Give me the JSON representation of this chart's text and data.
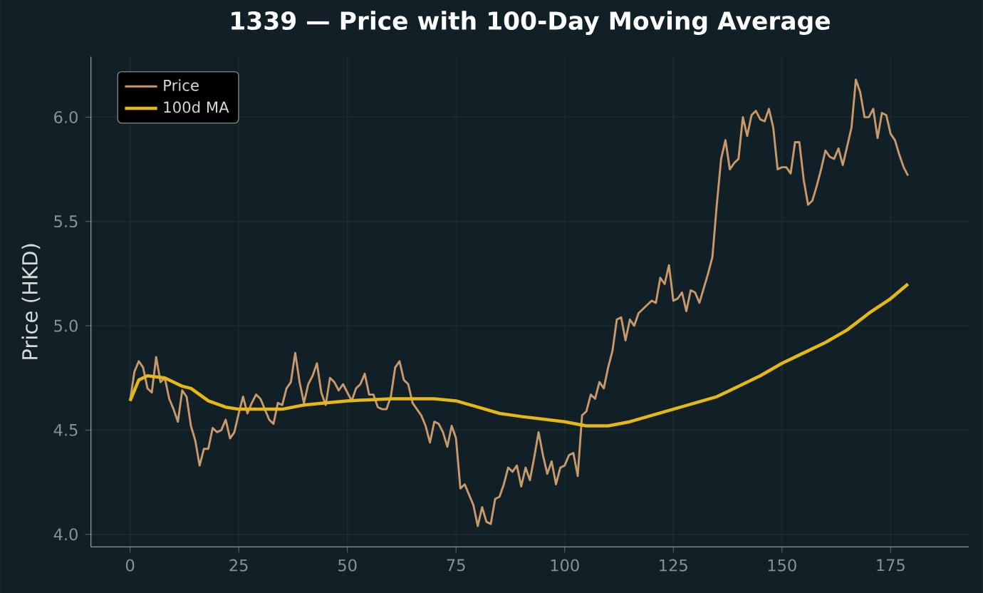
{
  "chart_data": {
    "type": "line",
    "title": "1339 — Price with 100-Day Moving Average",
    "ylabel": "Price (HKD)",
    "xlim": [
      -9,
      193
    ],
    "ylim": [
      3.94,
      6.29
    ],
    "xticks": [
      0,
      25,
      50,
      75,
      100,
      125,
      150,
      175
    ],
    "yticks": [
      {
        "value": 4.0,
        "label": "4.0"
      },
      {
        "value": 4.5,
        "label": "4.5"
      },
      {
        "value": 5.0,
        "label": "5.0"
      },
      {
        "value": 5.5,
        "label": "5.5"
      },
      {
        "value": 6.0,
        "label": "6.0"
      }
    ],
    "grid": true,
    "legend": "top left",
    "marker": "none",
    "line_style": "solid",
    "series": [
      {
        "name": "Price",
        "color": "#c8996a",
        "x": [
          0,
          1,
          2,
          3,
          4,
          5,
          6,
          7,
          8,
          9,
          10,
          11,
          12,
          13,
          14,
          15,
          16,
          17,
          18,
          19,
          20,
          21,
          22,
          23,
          24,
          25,
          26,
          27,
          28,
          29,
          30,
          31,
          32,
          33,
          34,
          35,
          36,
          37,
          38,
          39,
          40,
          41,
          42,
          43,
          44,
          45,
          46,
          47,
          48,
          49,
          50,
          51,
          52,
          53,
          54,
          55,
          56,
          57,
          58,
          59,
          60,
          61,
          62,
          63,
          64,
          65,
          66,
          67,
          68,
          69,
          70,
          71,
          72,
          73,
          74,
          75,
          76,
          77,
          78,
          79,
          80,
          81,
          82,
          83,
          84,
          85,
          86,
          87,
          88,
          89,
          90,
          91,
          92,
          93,
          94,
          95,
          96,
          97,
          98,
          99,
          100,
          101,
          102,
          103,
          104,
          105,
          106,
          107,
          108,
          109,
          110,
          111,
          112,
          113,
          114,
          115,
          116,
          117,
          118,
          119,
          120,
          121,
          122,
          123,
          124,
          125,
          126,
          127,
          128,
          129,
          130,
          131,
          132,
          133,
          134,
          135,
          136,
          137,
          138,
          139,
          140,
          141,
          142,
          143,
          144,
          145,
          146,
          147,
          148,
          149,
          150,
          151,
          152,
          153,
          154,
          155,
          156,
          157,
          158,
          159,
          160,
          161,
          162,
          163,
          164,
          165,
          166,
          167,
          168,
          169,
          170,
          171,
          172,
          173,
          174,
          175,
          176,
          177,
          178,
          179
        ],
        "values": [
          4.64,
          4.78,
          4.83,
          4.8,
          4.7,
          4.68,
          4.85,
          4.73,
          4.75,
          4.65,
          4.6,
          4.54,
          4.69,
          4.66,
          4.52,
          4.45,
          4.33,
          4.41,
          4.41,
          4.51,
          4.49,
          4.5,
          4.55,
          4.46,
          4.49,
          4.58,
          4.66,
          4.58,
          4.63,
          4.67,
          4.65,
          4.6,
          4.55,
          4.53,
          4.63,
          4.62,
          4.7,
          4.73,
          4.87,
          4.73,
          4.63,
          4.72,
          4.76,
          4.82,
          4.68,
          4.62,
          4.75,
          4.73,
          4.69,
          4.72,
          4.68,
          4.64,
          4.7,
          4.72,
          4.77,
          4.67,
          4.67,
          4.61,
          4.6,
          4.6,
          4.66,
          4.8,
          4.83,
          4.74,
          4.72,
          4.63,
          4.6,
          4.57,
          4.52,
          4.44,
          4.54,
          4.53,
          4.49,
          4.42,
          4.52,
          4.46,
          4.22,
          4.24,
          4.19,
          4.14,
          4.04,
          4.13,
          4.06,
          4.05,
          4.17,
          4.18,
          4.24,
          4.32,
          4.3,
          4.33,
          4.23,
          4.32,
          4.26,
          4.37,
          4.49,
          4.38,
          4.29,
          4.35,
          4.24,
          4.32,
          4.33,
          4.38,
          4.39,
          4.28,
          4.57,
          4.59,
          4.67,
          4.65,
          4.73,
          4.7,
          4.8,
          4.88,
          5.03,
          5.04,
          4.93,
          5.03,
          5.0,
          5.06,
          5.08,
          5.1,
          5.12,
          5.11,
          5.23,
          5.2,
          5.29,
          5.12,
          5.13,
          5.16,
          5.07,
          5.17,
          5.16,
          5.11,
          5.18,
          5.25,
          5.33,
          5.58,
          5.8,
          5.89,
          5.75,
          5.78,
          5.8,
          6.0,
          5.91,
          6.01,
          6.03,
          5.99,
          5.98,
          6.04,
          5.95,
          5.75,
          5.76,
          5.76,
          5.73,
          5.88,
          5.88,
          5.7,
          5.58,
          5.6,
          5.67,
          5.75,
          5.84,
          5.81,
          5.8,
          5.85,
          5.77,
          5.86,
          5.95,
          6.18,
          6.12,
          6.0,
          6.0,
          6.04,
          5.9,
          6.02,
          6.01,
          5.92,
          5.89,
          5.82,
          5.76,
          5.72
        ]
      },
      {
        "name": "100d MA",
        "color": "#e6b816",
        "x": [
          0,
          2,
          4,
          8,
          12,
          14,
          18,
          22,
          25,
          30,
          35,
          40,
          45,
          50,
          60,
          70,
          75,
          80,
          85,
          90,
          100,
          105,
          110,
          115,
          120,
          125,
          130,
          135,
          140,
          145,
          150,
          155,
          160,
          165,
          170,
          175,
          179
        ],
        "values": [
          4.64,
          4.74,
          4.76,
          4.75,
          4.71,
          4.7,
          4.64,
          4.61,
          4.6,
          4.6,
          4.6,
          4.62,
          4.63,
          4.64,
          4.65,
          4.65,
          4.64,
          4.61,
          4.58,
          4.565,
          4.54,
          4.52,
          4.52,
          4.54,
          4.57,
          4.6,
          4.63,
          4.66,
          4.71,
          4.76,
          4.82,
          4.87,
          4.92,
          4.98,
          5.06,
          5.13,
          5.2
        ]
      }
    ]
  }
}
